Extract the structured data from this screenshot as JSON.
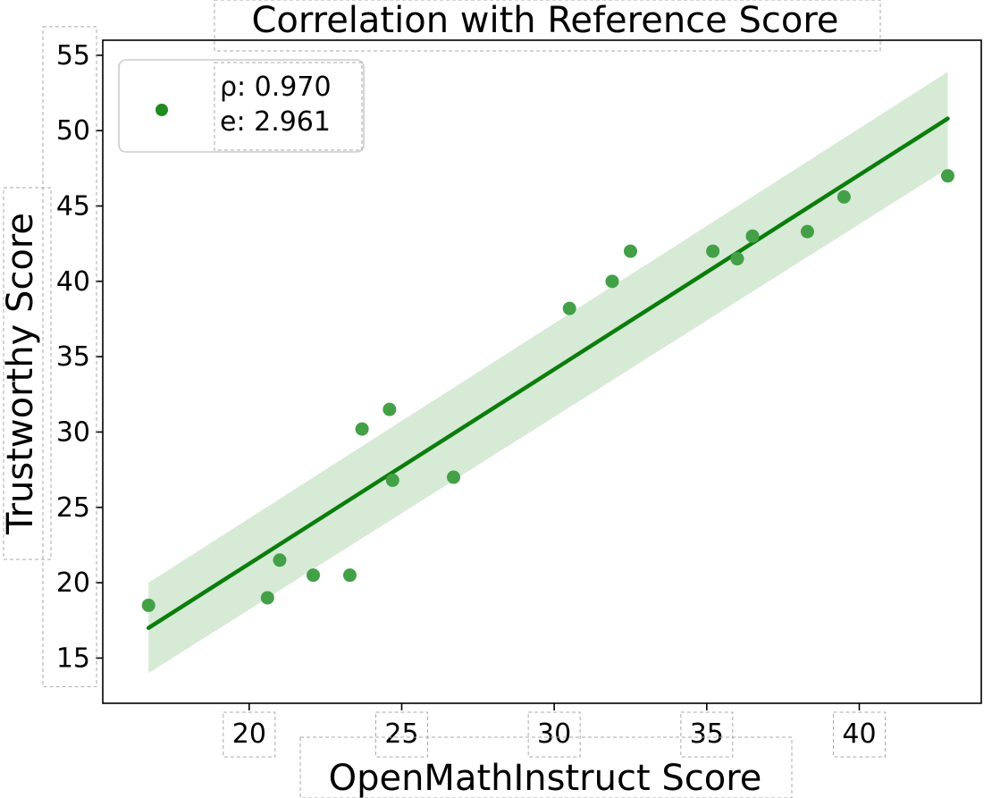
{
  "chart_data": {
    "type": "scatter",
    "title": "Correlation with Reference Score",
    "xlabel": "OpenMathInstruct Score",
    "ylabel": "Trustworthy Score",
    "xlim": [
      15.2,
      44.0
    ],
    "ylim": [
      12.0,
      56.0
    ],
    "xticks": [
      20,
      25,
      30,
      35,
      40
    ],
    "yticks": [
      15,
      20,
      25,
      30,
      35,
      40,
      45,
      50,
      55
    ],
    "grid": false,
    "legend": {
      "position": "top-left",
      "lines": [
        "ρ: 0.970",
        "e: 2.961"
      ]
    },
    "colors": {
      "points": "#43a047",
      "line": "#0b7d0b",
      "band": "#d6ead6",
      "legend_marker": "#1f8c1f"
    },
    "series": [
      {
        "type": "scatter",
        "x": [
          16.7,
          20.6,
          21.0,
          22.1,
          23.3,
          23.7,
          24.6,
          24.7,
          26.7,
          30.5,
          31.9,
          32.5,
          35.2,
          36.0,
          36.5,
          38.3,
          39.5,
          42.9
        ],
        "y": [
          18.5,
          19.0,
          21.5,
          20.5,
          20.5,
          30.2,
          31.5,
          26.8,
          27.0,
          38.2,
          40.0,
          42.0,
          42.0,
          41.5,
          43.0,
          43.3,
          45.6,
          47.0
        ]
      }
    ],
    "fit": {
      "x": [
        16.7,
        42.9
      ],
      "y": [
        17.0,
        50.8
      ],
      "band_upper": [
        20.0,
        53.9
      ],
      "band_lower": [
        14.0,
        47.5
      ]
    }
  }
}
